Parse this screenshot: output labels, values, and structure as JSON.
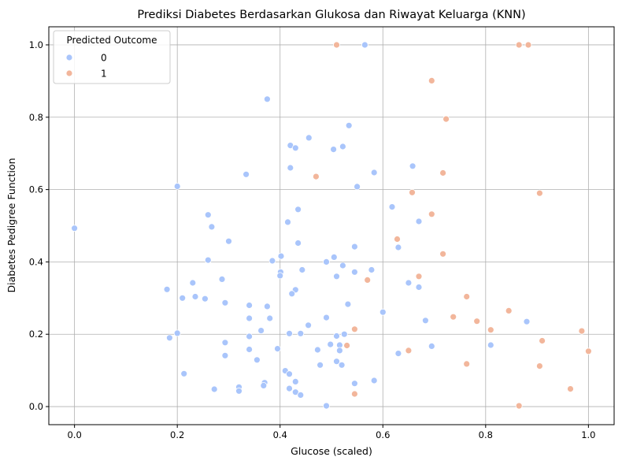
{
  "chart_data": {
    "type": "scatter",
    "title": "Prediksi Diabetes Berdasarkan Glukosa dan Riwayat Keluarga (KNN)",
    "xlabel": "Glucose (scaled)",
    "ylabel": "Diabetes Pedigree Function",
    "xlim": [
      -0.05,
      1.05
    ],
    "ylim": [
      -0.05,
      1.05
    ],
    "xticks": [
      "0.0",
      "0.2",
      "0.4",
      "0.6",
      "0.8",
      "1.0"
    ],
    "yticks": [
      "0.0",
      "0.2",
      "0.4",
      "0.6",
      "0.8",
      "1.0"
    ],
    "grid": true,
    "legend": {
      "title": "Predicted Outcome",
      "position": "top-left"
    },
    "series": [
      {
        "name": "0",
        "color": "#a9c5fb",
        "points": [
          [
            0.0,
            0.493
          ],
          [
            0.565,
            1.0
          ],
          [
            0.375,
            0.85
          ],
          [
            0.534,
            0.777
          ],
          [
            0.456,
            0.743
          ],
          [
            0.42,
            0.722
          ],
          [
            0.43,
            0.715
          ],
          [
            0.504,
            0.711
          ],
          [
            0.522,
            0.719
          ],
          [
            0.658,
            0.665
          ],
          [
            0.42,
            0.66
          ],
          [
            0.334,
            0.642
          ],
          [
            0.583,
            0.647
          ],
          [
            0.2,
            0.609
          ],
          [
            0.55,
            0.608
          ],
          [
            0.618,
            0.552
          ],
          [
            0.26,
            0.53
          ],
          [
            0.435,
            0.545
          ],
          [
            0.415,
            0.51
          ],
          [
            0.67,
            0.512
          ],
          [
            0.267,
            0.497
          ],
          [
            0.3,
            0.457
          ],
          [
            0.435,
            0.452
          ],
          [
            0.545,
            0.442
          ],
          [
            0.63,
            0.44
          ],
          [
            0.402,
            0.416
          ],
          [
            0.505,
            0.413
          ],
          [
            0.26,
            0.405
          ],
          [
            0.385,
            0.403
          ],
          [
            0.49,
            0.4
          ],
          [
            0.522,
            0.39
          ],
          [
            0.443,
            0.378
          ],
          [
            0.578,
            0.378
          ],
          [
            0.401,
            0.372
          ],
          [
            0.4,
            0.362
          ],
          [
            0.51,
            0.36
          ],
          [
            0.545,
            0.372
          ],
          [
            0.287,
            0.352
          ],
          [
            0.65,
            0.342
          ],
          [
            0.23,
            0.342
          ],
          [
            0.67,
            0.33
          ],
          [
            0.43,
            0.323
          ],
          [
            0.18,
            0.324
          ],
          [
            0.423,
            0.312
          ],
          [
            0.235,
            0.304
          ],
          [
            0.21,
            0.3
          ],
          [
            0.254,
            0.298
          ],
          [
            0.293,
            0.287
          ],
          [
            0.532,
            0.283
          ],
          [
            0.34,
            0.28
          ],
          [
            0.375,
            0.277
          ],
          [
            0.6,
            0.261
          ],
          [
            0.38,
            0.244
          ],
          [
            0.34,
            0.244
          ],
          [
            0.49,
            0.246
          ],
          [
            0.683,
            0.238
          ],
          [
            0.88,
            0.235
          ],
          [
            0.455,
            0.225
          ],
          [
            0.363,
            0.21
          ],
          [
            0.418,
            0.202
          ],
          [
            0.44,
            0.202
          ],
          [
            0.525,
            0.2
          ],
          [
            0.2,
            0.203
          ],
          [
            0.51,
            0.195
          ],
          [
            0.34,
            0.194
          ],
          [
            0.185,
            0.19
          ],
          [
            0.293,
            0.177
          ],
          [
            0.498,
            0.172
          ],
          [
            0.516,
            0.17
          ],
          [
            0.81,
            0.17
          ],
          [
            0.695,
            0.167
          ],
          [
            0.395,
            0.16
          ],
          [
            0.34,
            0.158
          ],
          [
            0.473,
            0.157
          ],
          [
            0.516,
            0.155
          ],
          [
            0.63,
            0.147
          ],
          [
            0.293,
            0.141
          ],
          [
            0.355,
            0.129
          ],
          [
            0.51,
            0.125
          ],
          [
            0.52,
            0.115
          ],
          [
            0.478,
            0.115
          ],
          [
            0.41,
            0.099
          ],
          [
            0.213,
            0.091
          ],
          [
            0.418,
            0.09
          ],
          [
            0.583,
            0.072
          ],
          [
            0.43,
            0.069
          ],
          [
            0.37,
            0.066
          ],
          [
            0.545,
            0.064
          ],
          [
            0.368,
            0.058
          ],
          [
            0.32,
            0.054
          ],
          [
            0.272,
            0.048
          ],
          [
            0.418,
            0.05
          ],
          [
            0.43,
            0.04
          ],
          [
            0.32,
            0.043
          ],
          [
            0.44,
            0.032
          ],
          [
            0.49,
            0.002
          ]
        ]
      },
      {
        "name": "1",
        "color": "#f2b69b",
        "points": [
          [
            0.51,
            1.0
          ],
          [
            0.865,
            1.0
          ],
          [
            0.883,
            1.0
          ],
          [
            0.695,
            0.901
          ],
          [
            0.723,
            0.795
          ],
          [
            0.47,
            0.636
          ],
          [
            0.717,
            0.646
          ],
          [
            0.657,
            0.592
          ],
          [
            0.905,
            0.59
          ],
          [
            0.695,
            0.532
          ],
          [
            0.628,
            0.463
          ],
          [
            0.717,
            0.422
          ],
          [
            0.67,
            0.36
          ],
          [
            0.57,
            0.35
          ],
          [
            0.763,
            0.304
          ],
          [
            0.845,
            0.265
          ],
          [
            0.737,
            0.248
          ],
          [
            0.783,
            0.236
          ],
          [
            0.545,
            0.214
          ],
          [
            0.81,
            0.212
          ],
          [
            0.987,
            0.209
          ],
          [
            0.91,
            0.182
          ],
          [
            0.53,
            0.169
          ],
          [
            1.0,
            0.153
          ],
          [
            0.65,
            0.155
          ],
          [
            0.763,
            0.118
          ],
          [
            0.905,
            0.112
          ],
          [
            0.965,
            0.049
          ],
          [
            0.545,
            0.035
          ],
          [
            0.865,
            0.002
          ]
        ]
      }
    ]
  }
}
